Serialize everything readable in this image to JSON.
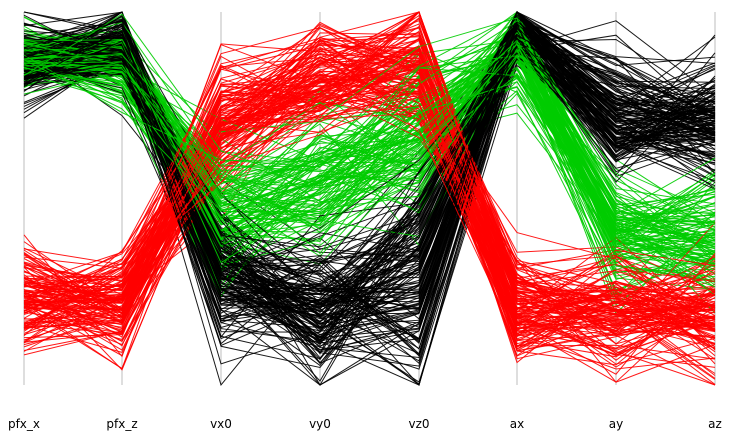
{
  "chart_data": {
    "type": "parallel-coordinates",
    "title": "",
    "axes": [
      "pfx_x",
      "pfx_z",
      "vx0",
      "vy0",
      "vz0",
      "ax",
      "ay",
      "az"
    ],
    "value_range": [
      0,
      1
    ],
    "grid": false,
    "legend": "none",
    "series": [
      {
        "color": "#000000",
        "count": 160,
        "profile": [
          0.86,
          0.9,
          0.3,
          0.2,
          0.3,
          0.95,
          0.72,
          0.7
        ],
        "spread": [
          0.05,
          0.05,
          0.1,
          0.1,
          0.16,
          0.05,
          0.08,
          0.08
        ]
      },
      {
        "color": "#00cc00",
        "count": 120,
        "profile": [
          0.88,
          0.86,
          0.46,
          0.54,
          0.66,
          0.9,
          0.4,
          0.4
        ],
        "spread": [
          0.04,
          0.05,
          0.1,
          0.1,
          0.1,
          0.06,
          0.07,
          0.08
        ]
      },
      {
        "color": "#ff0000",
        "count": 140,
        "profile": [
          0.24,
          0.22,
          0.7,
          0.82,
          0.86,
          0.2,
          0.2,
          0.2
        ],
        "spread": [
          0.07,
          0.07,
          0.09,
          0.07,
          0.09,
          0.07,
          0.08,
          0.08
        ]
      }
    ],
    "tick_labels": [
      "pfx_x",
      "pfx_z",
      "vx0",
      "vy0",
      "vz0",
      "ax",
      "ay",
      "az"
    ]
  }
}
